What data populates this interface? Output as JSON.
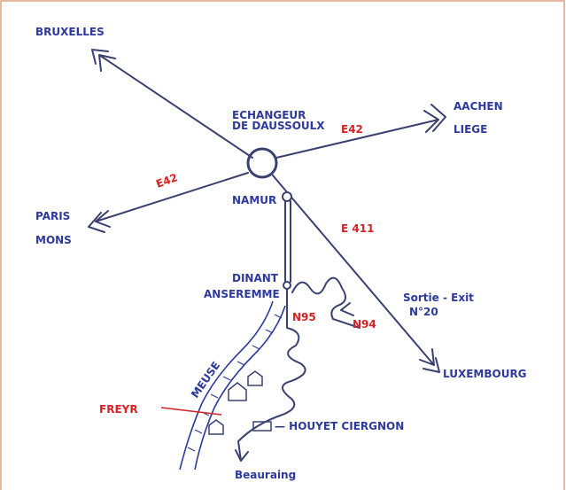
{
  "places": {
    "north": "BRUXELLES",
    "junction": [
      "ECHANGEUR",
      "DE DAUSSOULX"
    ],
    "east": [
      "AACHEN",
      "LIEGE"
    ],
    "west": [
      "PARIS",
      "MONS"
    ],
    "namur": "NAMUR",
    "dinant": "DINANT",
    "anseremme": "ANSEREMME",
    "exit": [
      "Sortie - Exit",
      "N°20"
    ],
    "south_east": "LUXEMBOURG",
    "freyr": "FREYR",
    "river": "MEUSE",
    "houyet": "— HOUYET CIERGNON",
    "beauraing": "Beauraing"
  },
  "roads": {
    "east": "E42",
    "west": "E42",
    "south": "E 411",
    "n95": "N95",
    "n94": "N94"
  }
}
